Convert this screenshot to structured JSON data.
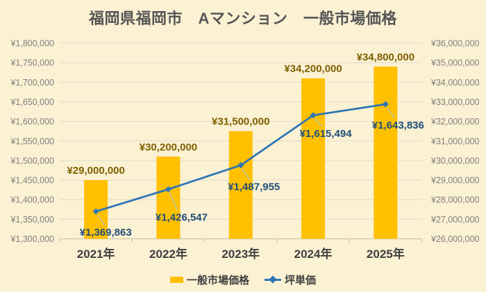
{
  "title": "福岡県福岡市　Aマンション　一般市場価格",
  "colors": {
    "background": "#FBF1D3",
    "title_text": "#555555",
    "gridline": "#E6E0CD",
    "axis_line": "#CFC6AC",
    "axis_tick_text": "#7F7F7F",
    "category_text": "#3F3F3F",
    "legend_text": "#3F3F3F",
    "bar_fill": "#FFC000",
    "bar_label_text": "#7F6000",
    "line_stroke": "#2E75B6",
    "marker_fill": "#2E75B6",
    "leader_line": "#9DC3E6",
    "line_label_text": "#1F4E79"
  },
  "chart_data": {
    "type": "combo-bar-line",
    "title": "福岡県福岡市　Aマンション　一般市場価格",
    "categories": [
      "2021年",
      "2022年",
      "2023年",
      "2024年",
      "2025年"
    ],
    "series": [
      {
        "name": "一般市場価格",
        "chart_type": "bar",
        "axis": "right",
        "values": [
          29000000,
          30200000,
          31500000,
          34200000,
          34800000
        ],
        "data_labels": [
          "¥29,000,000",
          "¥30,200,000",
          "¥31,500,000",
          "¥34,200,000",
          "¥34,800,000"
        ]
      },
      {
        "name": "坪単価",
        "chart_type": "line",
        "axis": "left",
        "values": [
          1369863,
          1426547,
          1487955,
          1615494,
          1643836
        ],
        "data_labels": [
          "¥1,369,863",
          "¥1,426,547",
          "¥1,487,955",
          "¥1,615,494",
          "¥1,643,836"
        ]
      }
    ],
    "axes": {
      "left": {
        "min": 1300000,
        "max": 1800000,
        "step": 50000,
        "tick_labels": [
          "¥1,300,000",
          "¥1,350,000",
          "¥1,400,000",
          "¥1,450,000",
          "¥1,500,000",
          "¥1,550,000",
          "¥1,600,000",
          "¥1,650,000",
          "¥1,700,000",
          "¥1,750,000",
          "¥1,800,000"
        ]
      },
      "right": {
        "min": 26000000,
        "max": 36000000,
        "step": 1000000,
        "tick_labels": [
          "¥26,000,000",
          "¥27,000,000",
          "¥28,000,000",
          "¥29,000,000",
          "¥30,000,000",
          "¥31,000,000",
          "¥32,000,000",
          "¥33,000,000",
          "¥34,000,000",
          "¥35,000,000",
          "¥36,000,000"
        ]
      }
    },
    "grid": true,
    "legend": {
      "position": "bottom",
      "entries": [
        "一般市場価格",
        "坪単価"
      ]
    }
  }
}
